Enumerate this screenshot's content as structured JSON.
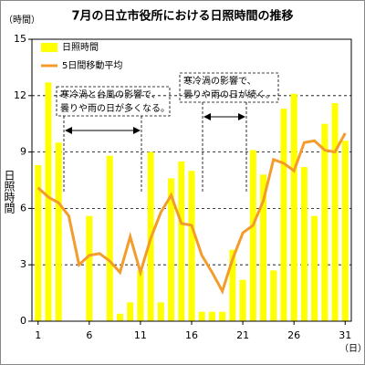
{
  "chart_data": {
    "type": "bar-line",
    "title": "7月の日立市役所における日照時間の推移",
    "y_unit": "（時間）",
    "y_label": "日照時間",
    "x_unit": "（日）",
    "x": [
      1,
      2,
      3,
      4,
      5,
      6,
      7,
      8,
      9,
      10,
      11,
      12,
      13,
      14,
      15,
      16,
      17,
      18,
      19,
      20,
      21,
      22,
      23,
      24,
      25,
      26,
      27,
      28,
      29,
      30,
      31
    ],
    "xlim": [
      0.4,
      31.6
    ],
    "xticks": [
      1,
      6,
      11,
      16,
      21,
      26,
      31
    ],
    "ylim": [
      0,
      15
    ],
    "yticks": [
      0,
      3,
      6,
      9,
      12,
      15
    ],
    "grid": true,
    "series": [
      {
        "name": "日照時間",
        "kind": "bar",
        "color": "#ffff00",
        "values": [
          8.3,
          12.7,
          9.5,
          0,
          0,
          5.6,
          0,
          8.8,
          0.4,
          1.0,
          2.7,
          9.0,
          1.0,
          7.6,
          8.5,
          8.0,
          0.5,
          0.5,
          0.5,
          3.8,
          2.2,
          9.1,
          7.8,
          2.7,
          11.3,
          12.1,
          8.2,
          5.6,
          10.5,
          11.6,
          9.6
        ]
      },
      {
        "name": "5日間移動平均",
        "kind": "line",
        "color": "#f39c2c",
        "values": [
          7.1,
          6.6,
          6.3,
          5.6,
          3.0,
          3.5,
          3.6,
          3.2,
          2.6,
          4.5,
          2.6,
          4.4,
          5.8,
          6.7,
          5.2,
          5.1,
          3.5,
          2.6,
          1.6,
          3.3,
          4.7,
          5.1,
          6.4,
          8.6,
          8.4,
          8.0,
          9.5,
          9.6,
          9.1,
          9.0,
          10.0
        ]
      }
    ],
    "legend": "upper-left",
    "annotations": [
      [
        "寒冷渦と台風の影響で、",
        "曇りや雨の日が多くなる。"
      ],
      [
        "寒冷渦の影響で、",
        "曇りや雨の日が続く。"
      ]
    ]
  }
}
